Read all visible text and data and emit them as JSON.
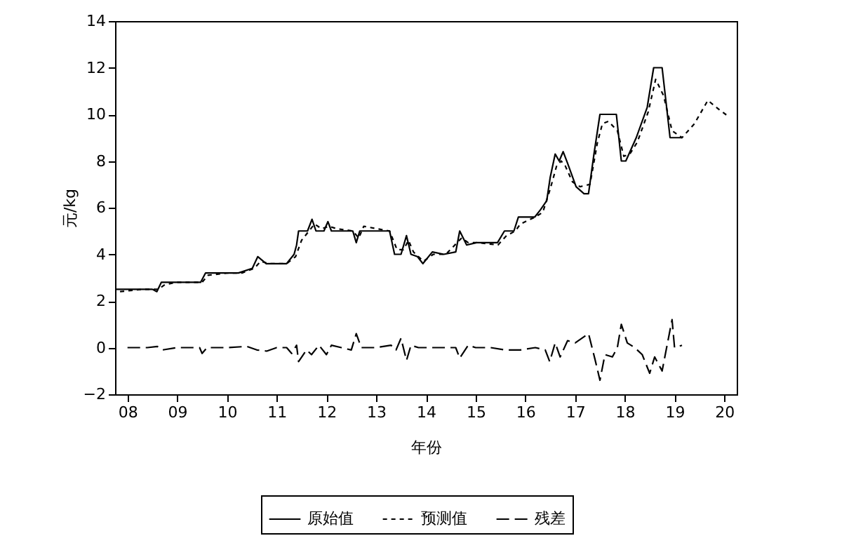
{
  "chart_data": {
    "type": "line",
    "xlabel": "年份",
    "ylabel": "元/kg",
    "xlim": [
      2007.75,
      2020.25
    ],
    "ylim": [
      -2,
      14
    ],
    "yticks": [
      -2,
      0,
      2,
      4,
      6,
      8,
      10,
      12,
      14
    ],
    "xticks": [
      {
        "value": 2008,
        "label": "08"
      },
      {
        "value": 2009,
        "label": "09"
      },
      {
        "value": 2010,
        "label": "10"
      },
      {
        "value": 2011,
        "label": "11"
      },
      {
        "value": 2012,
        "label": "12"
      },
      {
        "value": 2013,
        "label": "13"
      },
      {
        "value": 2014,
        "label": "14"
      },
      {
        "value": 2015,
        "label": "15"
      },
      {
        "value": 2016,
        "label": "16"
      },
      {
        "value": 2017,
        "label": "17"
      },
      {
        "value": 2018,
        "label": "18"
      },
      {
        "value": 2019,
        "label": "19"
      },
      {
        "value": 2020,
        "label": "20"
      }
    ],
    "grid": false,
    "legend": "bottom",
    "marker": "none",
    "series": [
      {
        "name": "原始值",
        "color": "#000000",
        "line_style": "solid",
        "x": [
          2007.77,
          2008.3,
          2008.5,
          2008.59,
          2008.68,
          2009.0,
          2009.47,
          2009.57,
          2010.0,
          2010.23,
          2010.51,
          2010.62,
          2010.79,
          2011.2,
          2011.35,
          2011.4,
          2011.44,
          2011.62,
          2011.71,
          2011.79,
          2011.95,
          2012.03,
          2012.1,
          2012.53,
          2012.6,
          2012.67,
          2013.27,
          2013.37,
          2013.5,
          2013.61,
          2013.7,
          2013.83,
          2013.94,
          2014.13,
          2014.36,
          2014.6,
          2014.68,
          2014.82,
          2015.02,
          2015.2,
          2015.44,
          2015.58,
          2015.77,
          2015.86,
          2016.19,
          2016.3,
          2016.43,
          2016.5,
          2016.6,
          2016.68,
          2016.76,
          2016.85,
          2017.02,
          2017.18,
          2017.27,
          2017.38,
          2017.5,
          2017.83,
          2017.93,
          2018.02,
          2018.23,
          2018.45,
          2018.58,
          2018.75,
          2018.91,
          2019.15
        ],
        "values": [
          2.5,
          2.5,
          2.5,
          2.4,
          2.8,
          2.8,
          2.8,
          3.2,
          3.2,
          3.2,
          3.4,
          3.9,
          3.6,
          3.6,
          4.0,
          4.4,
          5.0,
          5.0,
          5.5,
          5.0,
          5.0,
          5.4,
          5.0,
          5.0,
          4.5,
          5.0,
          5.0,
          4.0,
          4.0,
          4.8,
          4.0,
          3.9,
          3.6,
          4.1,
          4.0,
          4.1,
          5.0,
          4.4,
          4.5,
          4.5,
          4.5,
          5.0,
          5.0,
          5.6,
          5.6,
          5.9,
          6.3,
          7.3,
          8.3,
          8.0,
          8.4,
          7.9,
          6.9,
          6.6,
          6.6,
          8.3,
          10.0,
          10.0,
          8.0,
          8.0,
          9.0,
          10.3,
          12.0,
          12.0,
          9.0,
          9.0
        ]
      },
      {
        "name": "预测值",
        "color": "#000000",
        "line_style": "dotted",
        "x": [
          2007.85,
          2008.3,
          2008.62,
          2008.75,
          2009.0,
          2009.5,
          2009.62,
          2010.0,
          2010.3,
          2010.55,
          2010.68,
          2010.85,
          2011.2,
          2011.38,
          2011.5,
          2011.65,
          2011.76,
          2011.9,
          2012.06,
          2012.2,
          2012.53,
          2012.65,
          2012.75,
          2013.27,
          2013.42,
          2013.55,
          2013.65,
          2013.75,
          2013.95,
          2014.15,
          2014.4,
          2014.72,
          2014.85,
          2015.05,
          2015.45,
          2015.62,
          2015.8,
          2015.9,
          2016.2,
          2016.35,
          2016.5,
          2016.63,
          2016.72,
          2016.8,
          2016.95,
          2017.1,
          2017.3,
          2017.45,
          2017.55,
          2017.67,
          2017.85,
          2017.98,
          2018.1,
          2018.25,
          2018.47,
          2018.62,
          2018.78,
          2018.95,
          2019.15,
          2019.4,
          2019.67,
          2019.9,
          2020.09
        ],
        "values": [
          2.4,
          2.5,
          2.5,
          2.7,
          2.8,
          2.8,
          3.1,
          3.2,
          3.2,
          3.4,
          3.7,
          3.6,
          3.6,
          3.9,
          4.6,
          5.0,
          5.3,
          5.1,
          5.2,
          5.1,
          5.0,
          4.7,
          5.2,
          5.0,
          4.2,
          4.2,
          4.6,
          4.1,
          3.7,
          4.0,
          4.0,
          4.7,
          4.5,
          4.5,
          4.4,
          4.8,
          5.0,
          5.3,
          5.6,
          5.8,
          6.8,
          7.8,
          8.0,
          7.8,
          7.1,
          6.9,
          7.0,
          8.8,
          9.6,
          9.7,
          9.3,
          8.2,
          8.3,
          8.8,
          10.1,
          11.5,
          10.8,
          9.3,
          9.0,
          9.6,
          10.6,
          10.2,
          9.9
        ]
      },
      {
        "name": "残差",
        "color": "#000000",
        "line_style": "dashed",
        "x": [
          2008.0,
          2008.4,
          2008.6,
          2008.7,
          2009.0,
          2009.45,
          2009.5,
          2009.6,
          2010.0,
          2010.4,
          2010.6,
          2010.8,
          2011.0,
          2011.2,
          2011.3,
          2011.4,
          2011.44,
          2011.6,
          2011.7,
          2011.85,
          2012.0,
          2012.1,
          2012.3,
          2012.5,
          2012.6,
          2012.7,
          2013.0,
          2013.3,
          2013.4,
          2013.5,
          2013.61,
          2013.7,
          2013.85,
          2014.0,
          2014.3,
          2014.6,
          2014.68,
          2014.85,
          2015.0,
          2015.3,
          2015.6,
          2015.9,
          2016.2,
          2016.4,
          2016.49,
          2016.6,
          2016.7,
          2016.85,
          2017.0,
          2017.27,
          2017.4,
          2017.5,
          2017.6,
          2017.75,
          2017.85,
          2017.93,
          2018.05,
          2018.2,
          2018.35,
          2018.5,
          2018.6,
          2018.75,
          2018.95,
          2019.0,
          2019.15
        ],
        "values": [
          0.0,
          0.0,
          0.05,
          -0.1,
          0.0,
          0.0,
          -0.25,
          0.0,
          0.0,
          0.05,
          -0.1,
          -0.15,
          0.0,
          0.0,
          -0.25,
          0.1,
          -0.6,
          -0.1,
          -0.3,
          0.1,
          -0.3,
          0.1,
          0.0,
          -0.1,
          0.6,
          0.0,
          0.0,
          0.1,
          -0.1,
          0.4,
          -0.55,
          0.1,
          0.0,
          0.0,
          0.0,
          0.0,
          -0.45,
          0.1,
          0.0,
          0.0,
          -0.1,
          -0.1,
          0.0,
          -0.1,
          -0.6,
          0.2,
          -0.4,
          0.3,
          0.2,
          0.6,
          -0.5,
          -1.4,
          -0.3,
          -0.4,
          0.0,
          1.0,
          0.2,
          0.0,
          -0.3,
          -1.1,
          -0.4,
          -1.0,
          1.2,
          0.0,
          0.1
        ]
      }
    ]
  }
}
